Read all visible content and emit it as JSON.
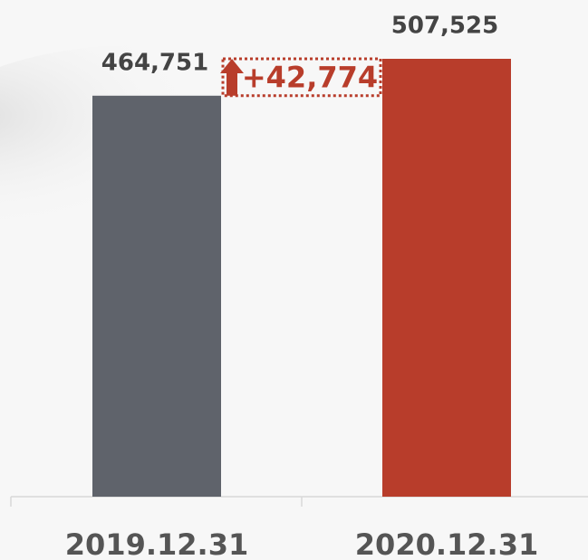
{
  "chart_data": {
    "type": "bar",
    "categories": [
      "2019.12.31",
      "2020.12.31"
    ],
    "values": [
      464751,
      507525
    ],
    "value_labels": [
      "464,751",
      "507,525"
    ],
    "colors": [
      "#5f636b",
      "#b83d2b"
    ],
    "annotation": "+42,774",
    "annotation_color": "#b83d2b"
  }
}
